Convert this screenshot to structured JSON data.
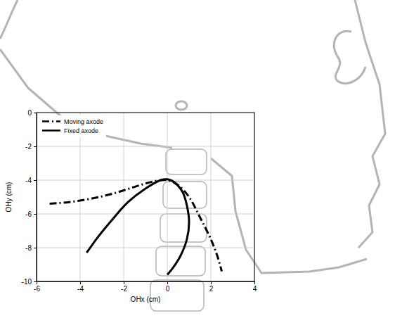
{
  "chart_data": {
    "type": "line",
    "xlabel": "OHx (cm)",
    "ylabel": "OHy (cm)",
    "xlim": [
      -6,
      4
    ],
    "xticks": [
      -6,
      -4,
      -2,
      0,
      2,
      4
    ],
    "ylim": [
      -10,
      0
    ],
    "yticks": [
      -10,
      -8,
      -6,
      -4,
      -2,
      0
    ],
    "grid": true,
    "legend": "upper left",
    "series": [
      {
        "name": "Moving axode",
        "color": "#000000",
        "line_style": "dashdot",
        "x": [
          -5.4,
          -4.5,
          -3.5,
          -2.5,
          -1.5,
          -0.7,
          0,
          0.5,
          1.0,
          1.5,
          2.0,
          2.3,
          2.5
        ],
        "values": [
          -5.4,
          -5.3,
          -5.1,
          -4.8,
          -4.4,
          -4.1,
          -4.0,
          -4.3,
          -5.0,
          -6.2,
          -7.5,
          -8.5,
          -9.4
        ]
      },
      {
        "name": "Fixed axode",
        "color": "#000000",
        "line_style": "solid",
        "x": [
          -3.7,
          -3.2,
          -2.5,
          -1.8,
          -1.0,
          -0.3,
          0,
          0.3,
          0.7,
          0.9,
          1.0,
          0.9,
          0.6,
          0.2,
          0
        ],
        "values": [
          -8.3,
          -7.4,
          -6.3,
          -5.3,
          -4.5,
          -4.0,
          -3.95,
          -4.1,
          -4.7,
          -5.5,
          -6.5,
          -7.5,
          -8.5,
          -9.3,
          -9.6
        ]
      }
    ]
  }
}
